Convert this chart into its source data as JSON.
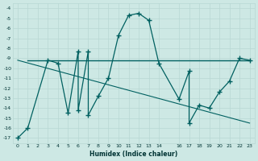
{
  "title": "",
  "xlabel": "Humidex (Indice chaleur)",
  "bg_color": "#cde8e4",
  "grid_color": "#b8d8d4",
  "line_color": "#006060",
  "xlim": [
    -0.5,
    23.5
  ],
  "ylim": [
    -17.5,
    -3.5
  ],
  "xticks": [
    0,
    1,
    2,
    3,
    4,
    5,
    6,
    7,
    8,
    9,
    10,
    11,
    12,
    13,
    14,
    16,
    17,
    18,
    19,
    20,
    21,
    22,
    23
  ],
  "yticks": [
    -17,
    -16,
    -15,
    -14,
    -13,
    -12,
    -11,
    -10,
    -9,
    -8,
    -7,
    -6,
    -5,
    -4
  ],
  "series1_x": [
    0,
    1,
    3,
    4,
    5,
    6,
    6,
    7,
    7,
    8,
    9,
    10,
    11,
    12,
    13,
    14,
    16,
    17,
    17,
    18,
    19,
    20,
    21,
    22,
    23
  ],
  "series1_y": [
    -17,
    -16,
    -9.2,
    -9.5,
    -14.5,
    -8.3,
    -14.2,
    -8.3,
    -14.7,
    -12.8,
    -11.0,
    -6.7,
    -4.7,
    -4.5,
    -5.2,
    -9.5,
    -13.1,
    -10.3,
    -15.5,
    -13.7,
    -14.0,
    -12.4,
    -11.3,
    -9.0,
    -9.2
  ],
  "series2_x": [
    1,
    23
  ],
  "series2_y": [
    -9.2,
    -9.2
  ],
  "series3_x": [
    0,
    23
  ],
  "series3_y": [
    -9.2,
    -15.5
  ]
}
